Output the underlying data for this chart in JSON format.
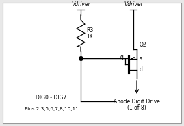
{
  "fig_width": 2.69,
  "fig_height": 1.84,
  "dpi": 100,
  "bg_color": "#e8e8e8",
  "inner_bg": "#ffffff",
  "border_color": "#999999",
  "text_vdriver": "Vdriver",
  "text_r3_1": "R3",
  "text_r3_2": "1K",
  "text_q2": "Q2",
  "text_g": "g",
  "text_s": "s",
  "text_d": "d",
  "text_dig1": "DIG0 - DIG7",
  "text_dig2": "Pins 2,3,5,6,7,8,10,11",
  "text_anode1": "Anode Digit Drive",
  "text_anode2": "(1 of 8)",
  "font_size": 5.5,
  "line_color": "#000000",
  "lw": 0.9
}
